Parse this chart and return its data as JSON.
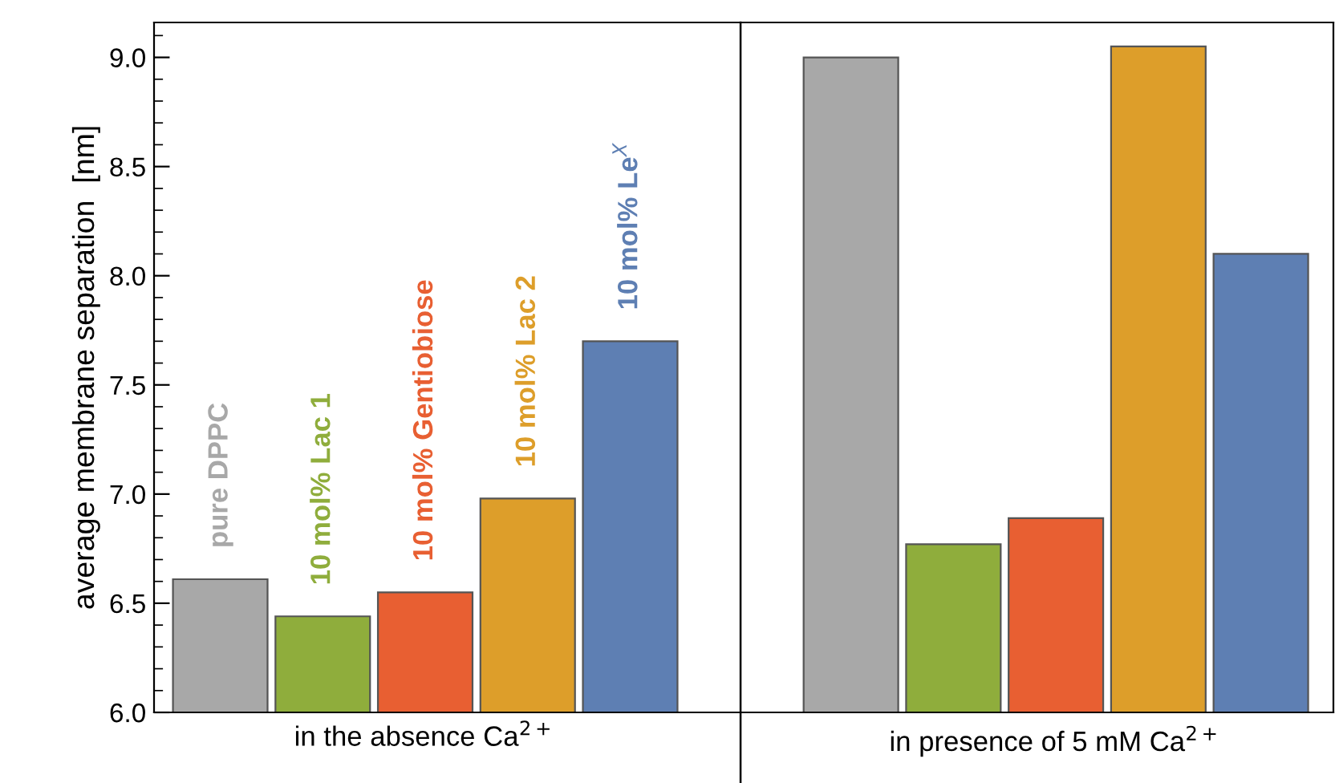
{
  "chart_data": {
    "type": "bar",
    "ylabel": "average membrane separation  [nm]",
    "categories": [
      "in the absence Ca$^{2+}$",
      "in presence of 5 mM Ca$^{2+}$"
    ],
    "series": [
      {
        "name": "pure DPPC",
        "color": "#a8a8a8",
        "values": [
          6.61,
          9.0
        ]
      },
      {
        "name": "10 mol% Lac 1",
        "color": "#8fad3c",
        "values": [
          6.44,
          6.77
        ]
      },
      {
        "name": "10 mol% Gentiobiose",
        "color": "#e85f32",
        "values": [
          6.55,
          6.89
        ]
      },
      {
        "name": "10 mol% Lac 2",
        "color": "#dd9e2a",
        "values": [
          6.98,
          9.05
        ]
      },
      {
        "name": "10 mol% Le$^{X}$",
        "color": "#5e7fb3",
        "values": [
          7.7,
          8.1
        ]
      }
    ],
    "ylim": [
      6.0,
      9.16
    ],
    "yticks": [
      {
        "value": 6.0,
        "label": "6.0"
      },
      {
        "value": 6.5,
        "label": "6.5"
      },
      {
        "value": 7.0,
        "label": "7.0"
      },
      {
        "value": 7.5,
        "label": "7.5"
      },
      {
        "value": 8.0,
        "label": "8.0"
      },
      {
        "value": 8.5,
        "label": "8.5"
      },
      {
        "value": 9.0,
        "label": "9.0"
      }
    ],
    "grid": false
  }
}
